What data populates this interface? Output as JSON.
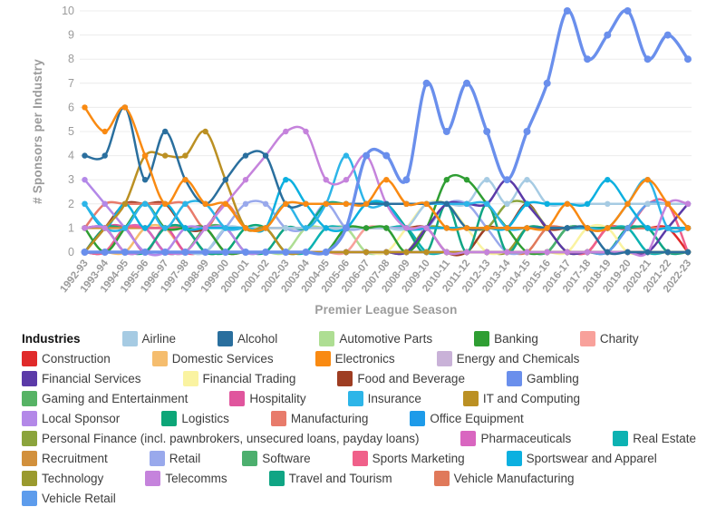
{
  "chart_data": {
    "type": "line",
    "title": "",
    "xlabel": "Premier League Season",
    "ylabel": "# Sponsors per Industry",
    "ylim": [
      0,
      10
    ],
    "y_ticks": [
      0,
      1,
      2,
      3,
      4,
      5,
      6,
      7,
      8,
      9,
      10
    ],
    "grid": "horizontal",
    "legend_title": "Industries",
    "legend_position": "bottom",
    "categories": [
      "1992-93",
      "1993-94",
      "1994-95",
      "1995-96",
      "1996-97",
      "1997-98",
      "1998-99",
      "1999-00",
      "2000-01",
      "2001-02",
      "2002-03",
      "2003-04",
      "2004-05",
      "2005-06",
      "2006-07",
      "2007-08",
      "2008-09",
      "2009-10",
      "2010-11",
      "2011-12",
      "2012-13",
      "2013-14",
      "2014-15",
      "2015-16",
      "2016-17",
      "2017-18",
      "2018-19",
      "2019-20",
      "2020-21",
      "2021-22",
      "2022-23"
    ],
    "series": [
      {
        "name": "Airline",
        "color": "#a6cbe3",
        "values": [
          0,
          0,
          0,
          0,
          0,
          0,
          0,
          1,
          1,
          1,
          1,
          1,
          1,
          1,
          1,
          1,
          1,
          2,
          2,
          2,
          3,
          2,
          3,
          2,
          2,
          2,
          2,
          2,
          2,
          2,
          2
        ]
      },
      {
        "name": "Alcohol",
        "color": "#2a6f9e",
        "values": [
          4,
          4,
          6,
          3,
          5,
          3,
          2,
          3,
          4,
          4,
          2,
          2,
          2,
          2,
          2,
          2,
          2,
          2,
          2,
          1,
          1,
          1,
          1,
          1,
          1,
          1,
          0,
          0,
          0,
          0,
          0
        ]
      },
      {
        "name": "Automotive Parts",
        "color": "#aede93",
        "values": [
          0,
          0,
          0,
          0,
          0,
          0,
          0,
          0,
          0,
          0,
          0,
          1,
          1,
          1,
          0,
          0,
          0,
          0,
          0,
          0,
          0,
          0,
          0,
          0,
          0,
          0,
          0,
          0,
          0,
          0,
          0
        ]
      },
      {
        "name": "Banking",
        "color": "#2f9e33",
        "values": [
          1,
          0,
          1,
          2,
          1,
          1,
          1,
          0,
          0,
          0,
          0,
          0,
          0,
          1,
          1,
          1,
          0,
          1,
          3,
          3,
          2,
          1,
          0,
          0,
          0,
          0,
          0,
          0,
          0,
          0,
          0
        ]
      },
      {
        "name": "Charity",
        "color": "#f8a19b",
        "values": [
          0,
          0,
          0,
          0,
          0,
          0,
          0,
          0,
          0,
          0,
          0,
          0,
          0,
          0,
          1,
          1,
          1,
          1,
          1,
          1,
          1,
          1,
          1,
          1,
          1,
          1,
          1,
          1,
          1,
          1,
          1
        ]
      },
      {
        "name": "Construction",
        "color": "#e02a2a",
        "values": [
          0,
          0,
          0,
          0,
          0,
          0,
          0,
          0,
          0,
          0,
          0,
          0,
          0,
          0,
          0,
          0,
          0,
          0,
          0,
          0,
          0,
          0,
          0,
          0,
          0,
          0,
          1,
          1,
          1,
          1,
          0
        ]
      },
      {
        "name": "Domestic Services",
        "color": "#f5bd6e",
        "values": [
          0,
          0,
          0,
          1,
          1,
          0,
          0,
          0,
          0,
          0,
          0,
          0,
          0,
          0,
          0,
          0,
          0,
          0,
          0,
          0,
          0,
          0,
          0,
          0,
          0,
          0,
          0,
          0,
          0,
          0,
          0
        ]
      },
      {
        "name": "Electronics",
        "color": "#f98a12",
        "values": [
          6,
          5,
          6,
          4,
          2,
          3,
          2,
          2,
          1,
          1,
          2,
          2,
          2,
          2,
          2,
          3,
          2,
          2,
          1,
          1,
          1,
          1,
          1,
          1,
          2,
          1,
          1,
          2,
          3,
          2,
          1
        ]
      },
      {
        "name": "Energy and Chemicals",
        "color": "#c9b2d8",
        "values": [
          0,
          1,
          1,
          1,
          0,
          0,
          0,
          0,
          0,
          0,
          0,
          0,
          0,
          0,
          0,
          0,
          0,
          0,
          0,
          0,
          0,
          0,
          0,
          0,
          0,
          0,
          0,
          0,
          0,
          0,
          0
        ]
      },
      {
        "name": "Financial Services",
        "color": "#5b3aa8",
        "values": [
          1,
          1,
          0,
          0,
          0,
          0,
          0,
          0,
          0,
          0,
          0,
          0,
          0,
          0,
          0,
          0,
          0,
          1,
          2,
          2,
          2,
          3,
          2,
          1,
          0,
          0,
          0,
          0,
          0,
          1,
          2
        ]
      },
      {
        "name": "Financial Trading",
        "color": "#faf3a1",
        "values": [
          0,
          0,
          0,
          0,
          0,
          0,
          0,
          0,
          0,
          0,
          0,
          0,
          0,
          0,
          0,
          0,
          1,
          2,
          2,
          1,
          0,
          0,
          0,
          0,
          0,
          1,
          1,
          0,
          0,
          0,
          0
        ]
      },
      {
        "name": "Food and Beverage",
        "color": "#9e3d22",
        "values": [
          0,
          1,
          2,
          2,
          2,
          1,
          1,
          2,
          1,
          1,
          1,
          1,
          1,
          1,
          1,
          1,
          1,
          1,
          0,
          0,
          1,
          1,
          2,
          1,
          1,
          1,
          1,
          1,
          1,
          1,
          1
        ]
      },
      {
        "name": "Gambling",
        "color": "#6a8fec",
        "values": [
          0,
          0,
          0,
          0,
          0,
          0,
          0,
          0,
          0,
          0,
          0,
          0,
          0,
          1,
          4,
          4,
          3,
          7,
          5,
          7,
          5,
          3,
          5,
          7,
          10,
          8,
          9,
          10,
          8,
          9,
          8
        ]
      },
      {
        "name": "Gaming and Entertainment",
        "color": "#56b365",
        "values": [
          0,
          0,
          0,
          0,
          0,
          0,
          1,
          1,
          0,
          0,
          0,
          0,
          0,
          0,
          0,
          0,
          0,
          0,
          0,
          0,
          0,
          0,
          0,
          0,
          1,
          1,
          1,
          1,
          1,
          1,
          1
        ]
      },
      {
        "name": "Hospitality",
        "color": "#e0559d",
        "values": [
          0,
          1,
          1,
          0,
          1,
          0,
          0,
          0,
          0,
          0,
          0,
          0,
          0,
          0,
          0,
          0,
          0,
          0,
          0,
          0,
          0,
          0,
          0,
          0,
          0,
          0,
          0,
          0,
          0,
          0,
          0
        ]
      },
      {
        "name": "Insurance",
        "color": "#2db5e8",
        "values": [
          2,
          1,
          1,
          2,
          1,
          2,
          2,
          1,
          1,
          1,
          2,
          1,
          2,
          4,
          2,
          2,
          2,
          2,
          2,
          2,
          2,
          1,
          1,
          1,
          1,
          1,
          1,
          2,
          3,
          1,
          1
        ]
      },
      {
        "name": "IT and Computing",
        "color": "#bb9023",
        "values": [
          0,
          1,
          2,
          4,
          4,
          4,
          5,
          3,
          1,
          1,
          0,
          0,
          0,
          0,
          0,
          0,
          0,
          0,
          0,
          0,
          0,
          0,
          0,
          0,
          0,
          0,
          0,
          0,
          0,
          0,
          0
        ]
      },
      {
        "name": "Local Sponsor",
        "color": "#b388e8",
        "values": [
          3,
          2,
          1,
          0,
          0,
          1,
          1,
          1,
          0,
          0,
          0,
          0,
          0,
          0,
          0,
          0,
          0,
          0,
          0,
          0,
          0,
          0,
          0,
          0,
          0,
          0,
          0,
          0,
          0,
          0,
          0
        ]
      },
      {
        "name": "Logistics",
        "color": "#0ca678",
        "values": [
          0,
          1,
          1,
          1,
          0,
          0,
          0,
          0,
          1,
          1,
          0,
          0,
          0,
          0,
          0,
          0,
          0,
          0,
          0,
          0,
          0,
          0,
          0,
          0,
          0,
          0,
          0,
          1,
          1,
          1,
          1
        ]
      },
      {
        "name": "Manufacturing",
        "color": "#e87b6b",
        "values": [
          1,
          2,
          2,
          2,
          2,
          2,
          1,
          2,
          1,
          1,
          1,
          1,
          1,
          1,
          1,
          1,
          1,
          1,
          1,
          1,
          1,
          1,
          1,
          1,
          1,
          1,
          1,
          1,
          1,
          1,
          1
        ]
      },
      {
        "name": "Office Equipment",
        "color": "#1e9be9",
        "values": [
          0,
          0,
          1,
          1,
          1,
          1,
          0,
          0,
          0,
          0,
          0,
          0,
          0,
          0,
          0,
          0,
          0,
          0,
          0,
          0,
          0,
          0,
          0,
          0,
          0,
          0,
          0,
          0,
          0,
          0,
          0
        ]
      },
      {
        "name": "Personal Finance (incl. pawnbrokers, unsecured loans, payday loans)",
        "color": "#8ba43c",
        "values": [
          0,
          0,
          0,
          0,
          0,
          0,
          0,
          0,
          0,
          0,
          0,
          0,
          0,
          0,
          0,
          0,
          0,
          1,
          1,
          1,
          1,
          2,
          2,
          1,
          0,
          0,
          0,
          0,
          0,
          0,
          0
        ]
      },
      {
        "name": "Pharmaceuticals",
        "color": "#d966c0",
        "values": [
          0,
          0,
          1,
          1,
          0,
          0,
          0,
          0,
          0,
          0,
          0,
          0,
          0,
          0,
          0,
          0,
          0,
          0,
          0,
          0,
          0,
          0,
          0,
          0,
          0,
          0,
          0,
          0,
          0,
          0,
          0
        ]
      },
      {
        "name": "Real Estate",
        "color": "#0cb2b2",
        "values": [
          0,
          0,
          0,
          0,
          0,
          0,
          0,
          0,
          0,
          0,
          0,
          0,
          1,
          1,
          1,
          1,
          1,
          0,
          0,
          0,
          0,
          0,
          0,
          0,
          1,
          1,
          1,
          1,
          0,
          0,
          0
        ]
      },
      {
        "name": "Recruitment",
        "color": "#d2903c",
        "values": [
          1,
          1,
          1,
          1,
          1,
          1,
          0,
          0,
          0,
          0,
          0,
          0,
          0,
          0,
          0,
          0,
          0,
          0,
          0,
          0,
          0,
          0,
          0,
          0,
          0,
          0,
          0,
          0,
          0,
          0,
          0
        ]
      },
      {
        "name": "Retail",
        "color": "#99a9ec",
        "values": [
          0,
          0,
          0,
          0,
          0,
          0,
          0,
          1,
          2,
          2,
          1,
          1,
          2,
          1,
          1,
          1,
          1,
          1,
          2,
          2,
          1,
          0,
          0,
          0,
          0,
          0,
          0,
          0,
          0,
          0,
          0
        ]
      },
      {
        "name": "Software",
        "color": "#4caf6e",
        "values": [
          0,
          0,
          0,
          0,
          0,
          0,
          0,
          0,
          0,
          0,
          0,
          0,
          0,
          0,
          0,
          0,
          0,
          0,
          0,
          0,
          0,
          0,
          0,
          0,
          1,
          1,
          1,
          1,
          1,
          1,
          1
        ]
      },
      {
        "name": "Sports Marketing",
        "color": "#f0608a",
        "values": [
          0,
          0,
          1,
          1,
          1,
          1,
          1,
          0,
          0,
          0,
          0,
          0,
          0,
          0,
          0,
          0,
          0,
          0,
          0,
          0,
          0,
          0,
          0,
          0,
          0,
          0,
          1,
          1,
          2,
          2,
          0
        ]
      },
      {
        "name": "Sportswear and Apparel",
        "color": "#0cb0e0",
        "values": [
          2,
          1,
          2,
          1,
          2,
          1,
          1,
          1,
          1,
          1,
          3,
          2,
          1,
          1,
          2,
          2,
          1,
          1,
          1,
          1,
          1,
          1,
          2,
          2,
          2,
          2,
          3,
          2,
          1,
          1,
          1
        ]
      },
      {
        "name": "Technology",
        "color": "#9a9a2e",
        "values": [
          0,
          0,
          0,
          0,
          0,
          0,
          0,
          0,
          0,
          0,
          0,
          0,
          0,
          0,
          0,
          0,
          0,
          0,
          0,
          0,
          0,
          0,
          1,
          1,
          1,
          1,
          1,
          1,
          1,
          1,
          1
        ]
      },
      {
        "name": "Telecomms",
        "color": "#c583dc",
        "values": [
          1,
          1,
          0,
          0,
          0,
          0,
          1,
          2,
          3,
          4,
          5,
          5,
          3,
          3,
          4,
          2,
          1,
          1,
          0,
          0,
          0,
          0,
          0,
          0,
          0,
          0,
          0,
          0,
          0,
          2,
          2
        ]
      },
      {
        "name": "Travel and Tourism",
        "color": "#10a584",
        "values": [
          0,
          0,
          0,
          0,
          1,
          1,
          0,
          0,
          0,
          0,
          1,
          1,
          2,
          2,
          2,
          2,
          1,
          0,
          2,
          0,
          2,
          0,
          1,
          1,
          1,
          1,
          1,
          1,
          1,
          0,
          0
        ]
      },
      {
        "name": "Vehicle Manufacturing",
        "color": "#e0795a",
        "values": [
          0,
          0,
          0,
          0,
          0,
          0,
          0,
          0,
          0,
          0,
          0,
          0,
          0,
          0,
          0,
          0,
          0,
          0,
          0,
          0,
          0,
          0,
          0,
          1,
          1,
          1,
          1,
          1,
          1,
          1,
          1
        ]
      },
      {
        "name": "Vehicle Retail",
        "color": "#5d9cec",
        "values": [
          0,
          0,
          0,
          0,
          0,
          0,
          0,
          0,
          0,
          0,
          0,
          0,
          0,
          0,
          0,
          0,
          0,
          0,
          0,
          0,
          0,
          0,
          0,
          0,
          0,
          0,
          0,
          1,
          2,
          2,
          2
        ]
      }
    ]
  }
}
